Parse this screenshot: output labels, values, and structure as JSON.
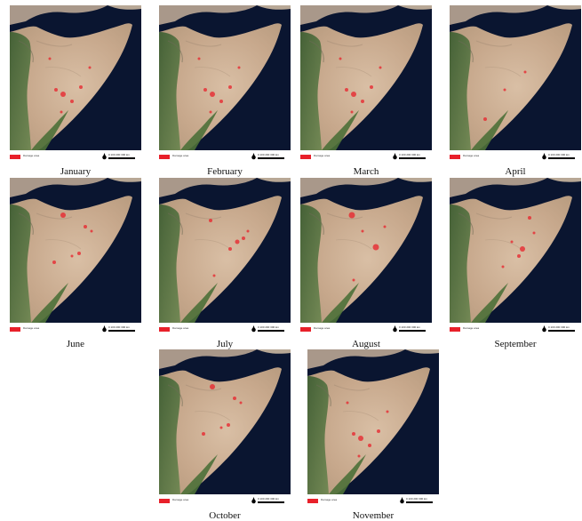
{
  "legend": {
    "label": "Damage area",
    "color": "#e8202a"
  },
  "scale_bar": {
    "labels": "0  100  200  300 km"
  },
  "north_arrow": {
    "icon": "north-arrow-icon"
  },
  "panels": [
    {
      "month": "January",
      "highlights": "scattered-central"
    },
    {
      "month": "February",
      "highlights": "scattered-central"
    },
    {
      "month": "March",
      "highlights": "scattered-central"
    },
    {
      "month": "April",
      "highlights": "sparse"
    },
    {
      "month": "June",
      "highlights": "north-west-spots"
    },
    {
      "month": "July",
      "highlights": "central-spots"
    },
    {
      "month": "August",
      "highlights": "north-central-spots"
    },
    {
      "month": "September",
      "highlights": "east-central-spots"
    },
    {
      "month": "October",
      "highlights": "north-west-spots"
    },
    {
      "month": "November",
      "highlights": "scattered-central"
    }
  ],
  "colors": {
    "ocean": "#0a1530",
    "land_arid": "#c9ae93",
    "land_green": "#4f6b3a",
    "damage": "#e8202a"
  }
}
